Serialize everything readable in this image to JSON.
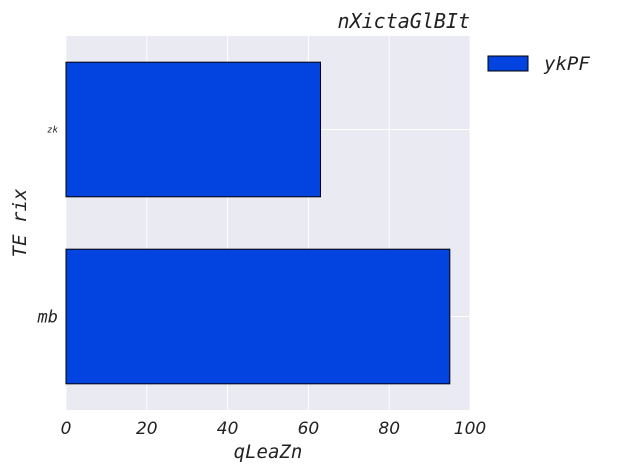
{
  "chart_data": {
    "type": "bar",
    "orientation": "horizontal",
    "title": "nXictaGlBIt",
    "xlabel": "qLeaZn",
    "ylabel": "TE rix",
    "categories": [
      "mb",
      "zk"
    ],
    "series": [
      {
        "name": "ykPF",
        "values": [
          95,
          63
        ],
        "color": "#0343df"
      }
    ],
    "xlim": [
      0,
      100
    ],
    "xticks": [
      0,
      20,
      40,
      60,
      80,
      100
    ],
    "grid": true,
    "legend_position": "outside-top-right",
    "background": "#eaeaf2",
    "bar_edge_color": "#000000"
  }
}
